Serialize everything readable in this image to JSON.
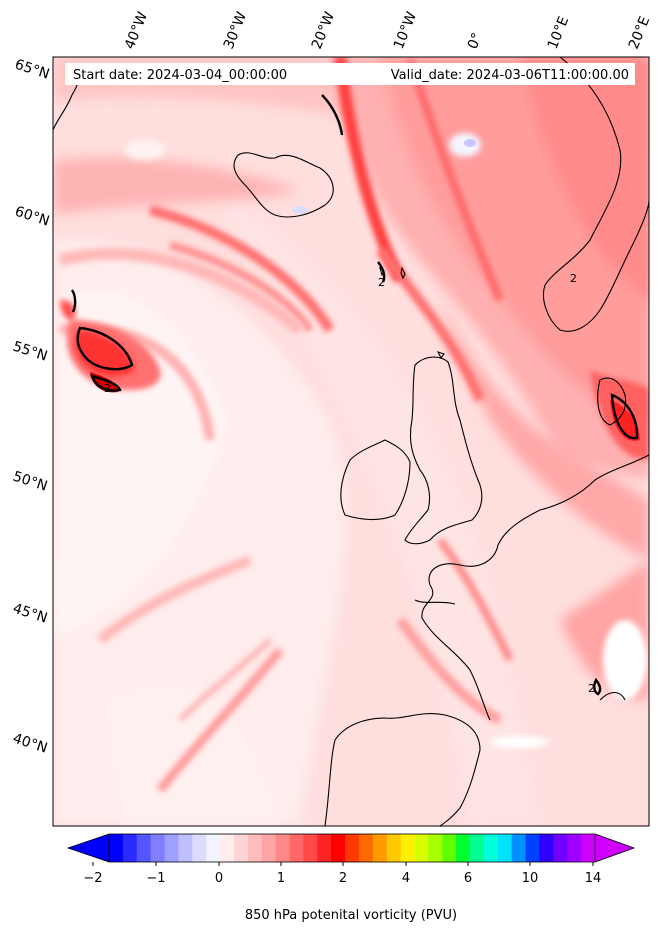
{
  "header": {
    "start_date": "Start date: 2024-03-04_00:00:00",
    "valid_date": "Valid_date: 2024-03-06T11:00:00.00"
  },
  "map": {
    "projection": "conic",
    "lon_labels": [
      "40°W",
      "30°W",
      "20°W",
      "10°W",
      "0°",
      "10°E",
      "20°E"
    ],
    "lat_labels": [
      "65°N",
      "60°N",
      "55°N",
      "50°N",
      "45°N",
      "40°N"
    ],
    "contour_labels": [
      "2",
      "2",
      "2",
      "2"
    ],
    "field": "850 hPa potential vorticity",
    "dominant_colors": {
      "background_low": "#ffe8e8",
      "mid": "#ffb0b0",
      "high": "#ff2020",
      "negative": "#c8c8ff"
    }
  },
  "colorbar": {
    "label": "850 hPa potenital vorticity (PVU)",
    "tick_labels": [
      "−2",
      "−1",
      "0",
      "1",
      "2",
      "4",
      "6",
      "10",
      "14"
    ],
    "tick_values": [
      -2,
      -1,
      0,
      1,
      2,
      4,
      6,
      10,
      14
    ],
    "extend": "both",
    "colors": [
      "#0000ff",
      "#2a2aff",
      "#5555ff",
      "#7f7fff",
      "#9f9fff",
      "#bfbfff",
      "#dcdcff",
      "#f3f3ff",
      "#ffecec",
      "#ffd4d4",
      "#ffbcbc",
      "#ffa4a4",
      "#ff8888",
      "#ff6868",
      "#ff4848",
      "#ff2424",
      "#ff0000",
      "#ff3a00",
      "#ff6a00",
      "#ff9a00",
      "#ffc800",
      "#fff000",
      "#d8ff00",
      "#a8ff00",
      "#60ff00",
      "#00ff30",
      "#00ff90",
      "#00ffd8",
      "#00e0ff",
      "#0090ff",
      "#0040ff",
      "#3000ff",
      "#7000ff",
      "#a000ff",
      "#d000ff"
    ]
  }
}
